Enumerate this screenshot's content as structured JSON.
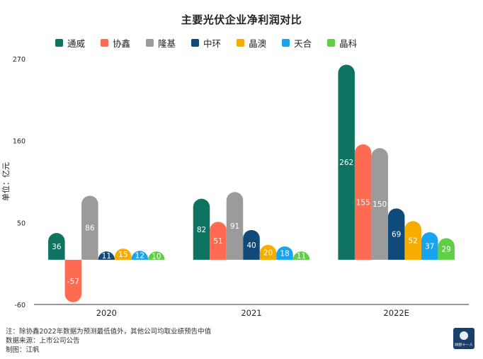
{
  "chart_data": {
    "type": "bar",
    "title": "主要光伏企业净利润对比",
    "ylabel": "单位：亿元",
    "xlabel": "",
    "ylim": [
      -60,
      270
    ],
    "yticks": [
      270,
      160,
      50,
      -60
    ],
    "categories": [
      "2020",
      "2021",
      "2022E"
    ],
    "series": [
      {
        "name": "通威",
        "color": "#0e7461",
        "values": [
          36,
          82,
          262
        ]
      },
      {
        "name": "协鑫",
        "color": "#ff6b52",
        "values": [
          -57,
          51,
          155
        ]
      },
      {
        "name": "隆基",
        "color": "#9b9b9b",
        "values": [
          86,
          91,
          150
        ]
      },
      {
        "name": "中环",
        "color": "#104a7a",
        "values": [
          11,
          40,
          69
        ]
      },
      {
        "name": "晶澳",
        "color": "#f7ac00",
        "values": [
          15,
          20,
          52
        ]
      },
      {
        "name": "天合",
        "color": "#1aa3ef",
        "values": [
          12,
          18,
          37
        ]
      },
      {
        "name": "晶科",
        "color": "#5fd046",
        "values": [
          10,
          11,
          29
        ]
      }
    ],
    "legend_position": "top",
    "grid": false,
    "data_labels": true
  },
  "notes": [
    "注：除协鑫2022年数据为预测最低值外，其他公司均取业绩预告中值",
    "数据来源：上市公司公告",
    "制图：江帆"
  ],
  "logo": {
    "text": "财经十一人"
  }
}
